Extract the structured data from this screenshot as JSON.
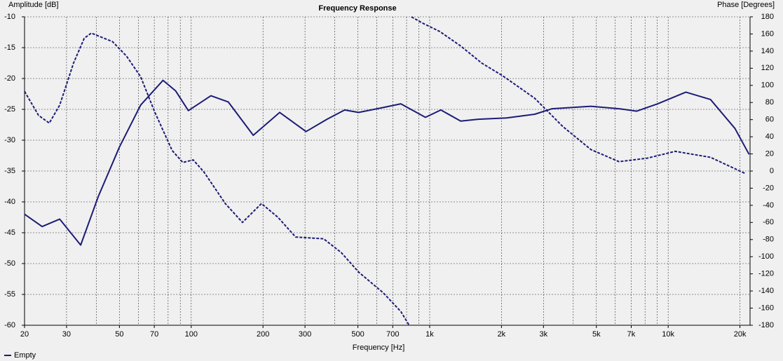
{
  "chart_data": {
    "type": "line",
    "title": "Frequency Response",
    "y_label": "Amplitude [dB]",
    "y2_label": "Phase [Degrees]",
    "x_label": "Frequency [Hz]",
    "xscale": "log",
    "xlim": [
      20,
      22050
    ],
    "ylim": [
      -60,
      -10
    ],
    "y2lim": [
      -180,
      180
    ],
    "xticks": [
      20,
      30,
      50,
      70,
      100,
      200,
      300,
      500,
      700,
      {
        "value": 1000,
        "label": "1k"
      },
      {
        "value": 2000,
        "label": "2k"
      },
      {
        "value": 3000,
        "label": "3k"
      },
      {
        "value": 5000,
        "label": "5k"
      },
      {
        "value": 7000,
        "label": "7k"
      },
      {
        "value": 10000,
        "label": "10k"
      },
      {
        "value": 20000,
        "label": "20k"
      }
    ],
    "xgrid_minor": [
      40,
      60,
      80,
      90,
      400,
      600,
      800,
      900,
      4000,
      6000,
      8000,
      9000
    ],
    "yticks": [
      -10,
      -15,
      -20,
      -25,
      -30,
      -35,
      -40,
      -45,
      -50,
      -55,
      -60
    ],
    "y2ticks": [
      180,
      160,
      140,
      120,
      100,
      80,
      60,
      40,
      20,
      0,
      -20,
      -40,
      -60,
      -80,
      -100,
      -120,
      -140,
      -160,
      -180
    ],
    "grid": true,
    "legend": "bottom-left",
    "series": [
      {
        "name": "Empty",
        "color": "#1c1c78",
        "dash": false,
        "x": [
          20,
          23.7,
          28.1,
          34.4,
          40.8,
          50,
          61.4,
          76.2,
          86,
          97.3,
          121,
          143,
          182,
          235,
          303,
          371,
          440,
          504,
          638,
          757,
          960,
          1114,
          1349,
          1599,
          2100,
          2755,
          3260,
          4743,
          6223,
          7380,
          9040,
          11860,
          15040,
          19070,
          21840
        ],
        "values": [
          -42.0,
          -44.0,
          -42.8,
          -47.0,
          -39.1,
          -31.1,
          -24.3,
          -20.3,
          -22.0,
          -25.2,
          -22.8,
          -23.8,
          -29.2,
          -25.5,
          -28.6,
          -26.6,
          -25.1,
          -25.5,
          -24.7,
          -24.1,
          -26.3,
          -25.1,
          -26.9,
          -26.6,
          -26.4,
          -25.8,
          -24.9,
          -24.5,
          -24.9,
          -25.3,
          -24.1,
          -22.2,
          -23.4,
          -28.1,
          -32.3
        ]
      },
      {
        "color": "#1c1c78",
        "dash": true,
        "axis": "y2",
        "x": [
          20,
          22.9,
          25.4,
          28.1,
          32.1,
          35.6,
          38.1,
          46.8,
          53.6,
          61.4,
          70.3,
          83.2,
          92.2,
          102,
          113,
          139,
          164,
          197,
          231,
          274,
          359,
          425,
          504,
          638,
          757,
          820,
          830,
          838,
          929,
          1100,
          1349,
          1653,
          2028,
          2755,
          3615,
          4743,
          6223,
          8160,
          10710,
          15040,
          21100
        ],
        "values": [
          93,
          65,
          56,
          77,
          126,
          155,
          161,
          151,
          134,
          110,
          69,
          24,
          10,
          13,
          -1,
          -38,
          -60,
          -38,
          -54,
          -77,
          -79,
          -95,
          -118,
          -142,
          -164,
          -180,
          null,
          180,
          173,
          163,
          146,
          126,
          111,
          85,
          52,
          25,
          11,
          15,
          23,
          16,
          -3
        ]
      }
    ]
  }
}
